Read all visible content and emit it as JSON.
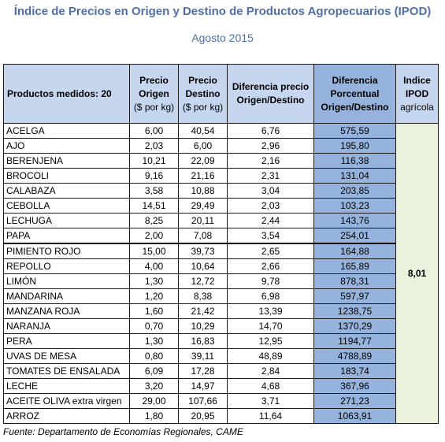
{
  "title": "Índice de Precios en Origen y Destino de Productos Agropecuarios (IPOD)",
  "subtitle": "Agosto 2015",
  "table": {
    "headers": {
      "product": "Productos medidos: 20",
      "origin_line1": "Precio",
      "origin_line2": "Origen",
      "origin_unit": "($ por kg)",
      "dest_line1": "Precio",
      "dest_line2": "Destino",
      "dest_unit": "($ por kg)",
      "diff_line1": "Diferencia precio",
      "diff_line2": "Origen/Destino",
      "pct_line1": "Diferencia",
      "pct_line2": "Porcentual",
      "pct_line3": "Origen/Destino",
      "index_line1": "Indice",
      "index_line2": "IPOD",
      "index_unit": "agrícola"
    },
    "index_value": "8,01",
    "rows": [
      {
        "name": "ACELGA",
        "origin": "6,00",
        "dest": "40,54",
        "diff": "6,76",
        "pct": "575,59"
      },
      {
        "name": "AJO",
        "origin": "2,03",
        "dest": "6,00",
        "diff": "2,96",
        "pct": "195,80"
      },
      {
        "name": "BERENJENA",
        "origin": "10,21",
        "dest": "22,09",
        "diff": "2,16",
        "pct": "116,38"
      },
      {
        "name": "BROCOLI",
        "origin": "9,16",
        "dest": "21,16",
        "diff": "2,31",
        "pct": "131,04"
      },
      {
        "name": "CALABAZA",
        "origin": "3,58",
        "dest": "10,88",
        "diff": "3,04",
        "pct": "203,85"
      },
      {
        "name": "CEBOLLA",
        "origin": "14,51",
        "dest": "29,49",
        "diff": "2,03",
        "pct": "103,23"
      },
      {
        "name": "LECHUGA",
        "origin": "8,25",
        "dest": "20,11",
        "diff": "2,44",
        "pct": "143,76"
      },
      {
        "name": "PAPA",
        "origin": "2,00",
        "dest": "7,08",
        "diff": "3,54",
        "pct": "254,01"
      },
      {
        "name": "PIMIENTO ROJO",
        "origin": "15,00",
        "dest": "39,73",
        "diff": "2,65",
        "pct": "164,88"
      },
      {
        "name": "REPOLLO",
        "origin": "4,00",
        "dest": "10,64",
        "diff": "2,66",
        "pct": "165,89"
      },
      {
        "name": "LIMÓN",
        "origin": "1,30",
        "dest": "12,72",
        "diff": "9,78",
        "pct": "878,31"
      },
      {
        "name": "MANDARINA",
        "origin": "1,20",
        "dest": "8,38",
        "diff": "6,98",
        "pct": "597,97"
      },
      {
        "name": "MANZANA ROJA",
        "origin": "1,60",
        "dest": "21,42",
        "diff": "13,39",
        "pct": "1238,75"
      },
      {
        "name": "NARANJA",
        "origin": "0,70",
        "dest": "10,29",
        "diff": "14,70",
        "pct": "1370,29"
      },
      {
        "name": "PERA",
        "origin": "1,30",
        "dest": "16,83",
        "diff": "12,95",
        "pct": "1194,77"
      },
      {
        "name": "UVAS DE MESA",
        "origin": "0,80",
        "dest": "39,11",
        "diff": "48,89",
        "pct": "4788,89"
      },
      {
        "name": "TOMATES DE ENSALADA",
        "origin": "6,09",
        "dest": "17,28",
        "diff": "2,84",
        "pct": "183,74"
      },
      {
        "name": "LECHE",
        "origin": "3,20",
        "dest": "14,97",
        "diff": "4,68",
        "pct": "367,96"
      },
      {
        "name": "ACEITE OLIVA extra virgen",
        "origin": "29,00",
        "dest": "107,66",
        "diff": "3,71",
        "pct": "271,23"
      },
      {
        "name": "ARROZ",
        "origin": "1,80",
        "dest": "20,95",
        "diff": "11,64",
        "pct": "1063,91"
      }
    ]
  },
  "source": "Fuente: Departamento de Economías Regionales, CAME",
  "colors": {
    "title": "#4f6fa8",
    "header_bg": "#c5d6ee",
    "highlight_column": "#95b3dc",
    "index_cell_bg": "#eaf1dd"
  }
}
